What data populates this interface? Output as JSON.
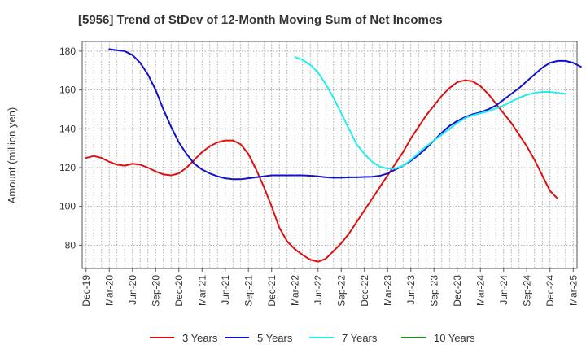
{
  "chart_data": {
    "type": "line",
    "title": "[5956]  Trend of StDev of 12-Month Moving Sum of Net Incomes",
    "ylabel": "Amount (million yen)",
    "xlabel": "",
    "ylim": [
      68,
      185
    ],
    "yticks": [
      80,
      100,
      120,
      140,
      160,
      180
    ],
    "x_tick_labels": [
      "Dec-19",
      "Mar-20",
      "Jun-20",
      "Sep-20",
      "Dec-20",
      "Mar-21",
      "Jun-21",
      "Sep-21",
      "Dec-21",
      "Mar-22",
      "Jun-22",
      "Sep-22",
      "Dec-22",
      "Mar-23",
      "Jun-23",
      "Sep-23",
      "Dec-23",
      "Mar-24",
      "Jun-24",
      "Sep-24",
      "Dec-24",
      "Mar-25"
    ],
    "grid": true,
    "legend_position": "bottom",
    "series": [
      {
        "name": "3 Years",
        "color": "#dd1111",
        "start_month": 0,
        "values": [
          125,
          126,
          125,
          123,
          121.5,
          121,
          122,
          121.5,
          120,
          118,
          116.5,
          116,
          117,
          120,
          124,
          128,
          131,
          133,
          134,
          134,
          132,
          127,
          119,
          110,
          100,
          89,
          82,
          78,
          75,
          72.5,
          71.5,
          73,
          77,
          81,
          86,
          92,
          98,
          104,
          110,
          116,
          122,
          128,
          135,
          141,
          147,
          152,
          157,
          161,
          164,
          165,
          164.5,
          162,
          158,
          153,
          148,
          143,
          137,
          131,
          124,
          116,
          108,
          104
        ]
      },
      {
        "name": "5 Years",
        "color": "#1111cc",
        "start_month": 3,
        "values": [
          181,
          180.5,
          180,
          178,
          174,
          168,
          160,
          150,
          141,
          133,
          127,
          122,
          119,
          117,
          115.5,
          114.5,
          114,
          114,
          114.5,
          115,
          115.5,
          116,
          116,
          116,
          116,
          116,
          115.8,
          115.5,
          115,
          114.8,
          114.8,
          115,
          115,
          115.2,
          115.3,
          115.8,
          117,
          119,
          121,
          123.5,
          126.5,
          130,
          134,
          138,
          141.5,
          144,
          146,
          147.5,
          148.5,
          150,
          152,
          155,
          158,
          161,
          164.5,
          168,
          171.5,
          174,
          175,
          175,
          174,
          172
        ]
      },
      {
        "name": "7 Years",
        "color": "#22eeee",
        "start_month": 27,
        "values": [
          177,
          175.5,
          173,
          169,
          163,
          156,
          148,
          140,
          132,
          127,
          123,
          120.5,
          119.5,
          119.5,
          121,
          124,
          127.5,
          131,
          134,
          137,
          140,
          143,
          145.5,
          147,
          148,
          149,
          150.5,
          152,
          154,
          156,
          157.5,
          158.5,
          159,
          159,
          158.5,
          158
        ]
      },
      {
        "name": "10 Years",
        "color": "#228822",
        "start_month": 0,
        "values": []
      }
    ]
  }
}
